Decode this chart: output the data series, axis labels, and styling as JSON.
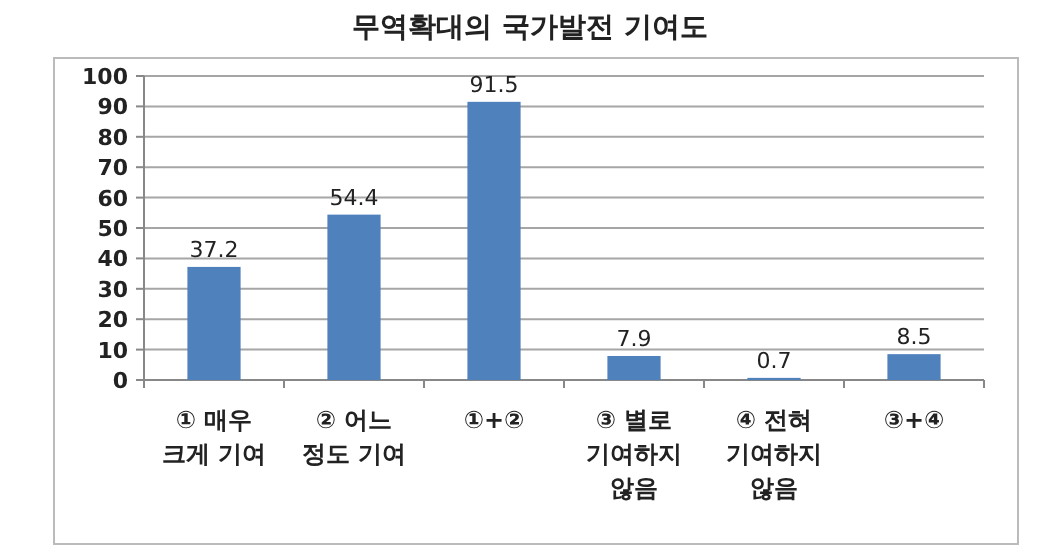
{
  "chart_data": {
    "type": "bar",
    "title": "무역확대의 국가발전 기여도",
    "categories": [
      "① 매우 크게 기여",
      "② 어느 정도 기여",
      "①+②",
      "③ 별로 기여하지 않음",
      "④ 전혀 기여하지 않음",
      "③+④"
    ],
    "values": [
      37.2,
      54.4,
      91.5,
      7.9,
      0.7,
      8.5
    ],
    "color": "#4f81bd",
    "ylim": [
      0,
      100
    ],
    "yticks": [
      0,
      10,
      20,
      30,
      40,
      50,
      60,
      70,
      80,
      90,
      100
    ],
    "grid": "y",
    "data_labels": true
  }
}
